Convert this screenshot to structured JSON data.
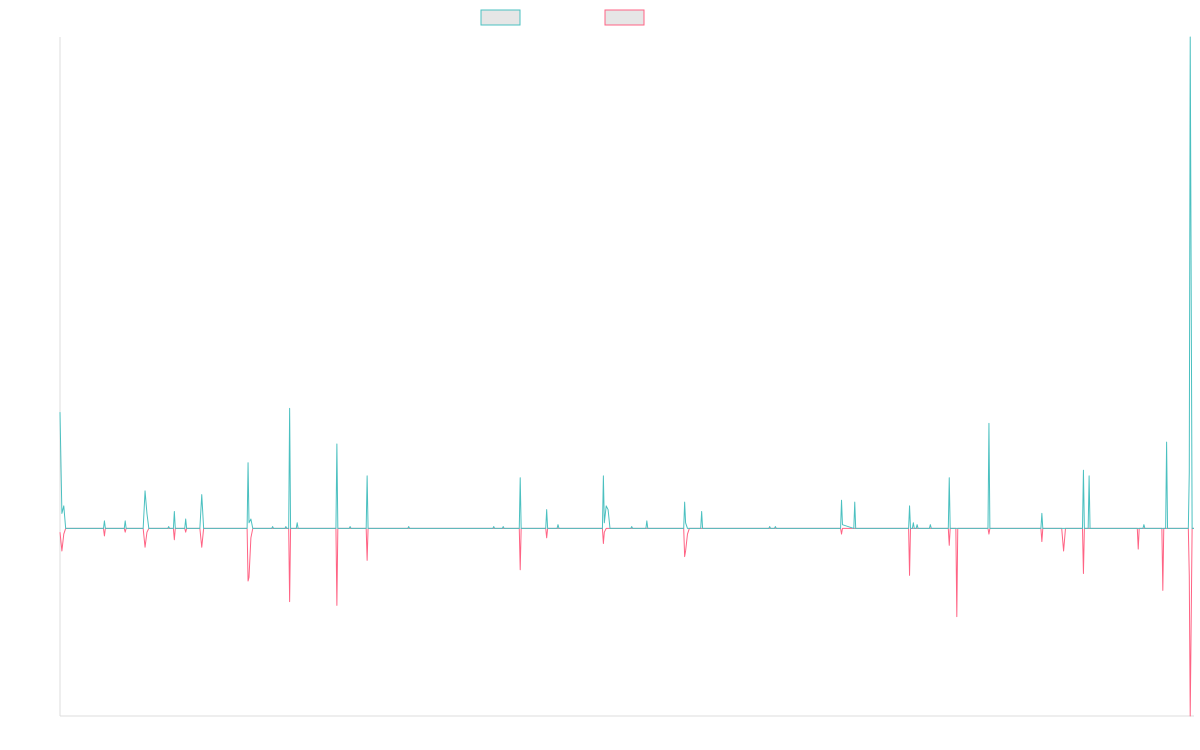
{
  "chart_data": {
    "type": "line",
    "title": "",
    "xlabel": "",
    "ylabel": "",
    "legend_position": "top-center",
    "grid": false,
    "x_range": [
      0,
      600
    ],
    "ylim": [
      -100,
      262
    ],
    "series": [
      {
        "color": "#4bc0c0",
        "legend_fill": "#e6e6e6",
        "points": [
          [
            0,
            62
          ],
          [
            1,
            8
          ],
          [
            2,
            12
          ],
          [
            3,
            0
          ],
          [
            23,
            0
          ],
          [
            23.5,
            4
          ],
          [
            24,
            0
          ],
          [
            34,
            0
          ],
          [
            34.5,
            4
          ],
          [
            35,
            0
          ],
          [
            44,
            0
          ],
          [
            45,
            20
          ],
          [
            46,
            8
          ],
          [
            47,
            0
          ],
          [
            57,
            0
          ],
          [
            57.5,
            1
          ],
          [
            58,
            0
          ],
          [
            60,
            0
          ],
          [
            60.5,
            9
          ],
          [
            61,
            0
          ],
          [
            66,
            0
          ],
          [
            66.5,
            5
          ],
          [
            67,
            0
          ],
          [
            74,
            0
          ],
          [
            75,
            18
          ],
          [
            76,
            0
          ],
          [
            99,
            0
          ],
          [
            99.5,
            35
          ],
          [
            100,
            3
          ],
          [
            101,
            5
          ],
          [
            102,
            0
          ],
          [
            112,
            0
          ],
          [
            112.5,
            1
          ],
          [
            113,
            0
          ],
          [
            119,
            0
          ],
          [
            119.5,
            1
          ],
          [
            120,
            0
          ],
          [
            121,
            0
          ],
          [
            121.5,
            64
          ],
          [
            122,
            0
          ],
          [
            125,
            0
          ],
          [
            125.5,
            3
          ],
          [
            126,
            0
          ],
          [
            146,
            0
          ],
          [
            146.5,
            45
          ],
          [
            147,
            0
          ],
          [
            153,
            0
          ],
          [
            153.5,
            1
          ],
          [
            154,
            0
          ],
          [
            162,
            0
          ],
          [
            162.5,
            28
          ],
          [
            163,
            0
          ],
          [
            184,
            0
          ],
          [
            184.5,
            1
          ],
          [
            185,
            0
          ],
          [
            229,
            0
          ],
          [
            229.5,
            1
          ],
          [
            230,
            0
          ],
          [
            234,
            0
          ],
          [
            234.5,
            1
          ],
          [
            235,
            0
          ],
          [
            243,
            0
          ],
          [
            243.5,
            27
          ],
          [
            244,
            0
          ],
          [
            257,
            0
          ],
          [
            257.5,
            10
          ],
          [
            258,
            0
          ],
          [
            263,
            0
          ],
          [
            263.5,
            2
          ],
          [
            264,
            0
          ],
          [
            287,
            0
          ],
          [
            287.5,
            28
          ],
          [
            288,
            3
          ],
          [
            289,
            12
          ],
          [
            290,
            10
          ],
          [
            291,
            0
          ],
          [
            302,
            0
          ],
          [
            302.5,
            1
          ],
          [
            303,
            0
          ],
          [
            310,
            0
          ],
          [
            310.5,
            4
          ],
          [
            311,
            0
          ],
          [
            330,
            0
          ],
          [
            330.5,
            14
          ],
          [
            331,
            3
          ],
          [
            332,
            0
          ],
          [
            339,
            0
          ],
          [
            339.5,
            9
          ],
          [
            340,
            0
          ],
          [
            375,
            0
          ],
          [
            375.5,
            1
          ],
          [
            376,
            0
          ],
          [
            378,
            0
          ],
          [
            378.5,
            1
          ],
          [
            379,
            0
          ],
          [
            413,
            0
          ],
          [
            413.5,
            15
          ],
          [
            414,
            2
          ],
          [
            420,
            0
          ],
          [
            420.5,
            14
          ],
          [
            421,
            0
          ],
          [
            449,
            0
          ],
          [
            449.5,
            12
          ],
          [
            450,
            0
          ],
          [
            451,
            0
          ],
          [
            451.5,
            3
          ],
          [
            452,
            0
          ],
          [
            453,
            0
          ],
          [
            453.5,
            2
          ],
          [
            454,
            0
          ],
          [
            460,
            0
          ],
          [
            460.5,
            2
          ],
          [
            461,
            0
          ],
          [
            470,
            0
          ],
          [
            470.5,
            27
          ],
          [
            471,
            0
          ],
          [
            491,
            0
          ],
          [
            491.5,
            56
          ],
          [
            492,
            0
          ],
          [
            519,
            0
          ],
          [
            519.5,
            8
          ],
          [
            520,
            0
          ],
          [
            541,
            0
          ],
          [
            541.5,
            31
          ],
          [
            542,
            0
          ],
          [
            544,
            0
          ],
          [
            544.5,
            28
          ],
          [
            545,
            0
          ],
          [
            573,
            0
          ],
          [
            573.5,
            2
          ],
          [
            574,
            0
          ],
          [
            585,
            0
          ],
          [
            585.5,
            46
          ],
          [
            586,
            0
          ],
          [
            597,
            0
          ],
          [
            597.5,
            30
          ],
          [
            598,
            262
          ],
          [
            599,
            0
          ],
          [
            600,
            0
          ]
        ]
      },
      {
        "color": "#ff6384",
        "legend_fill": "#e6e6e6",
        "points": [
          [
            0,
            -2
          ],
          [
            1,
            -12
          ],
          [
            2,
            -3
          ],
          [
            3,
            0
          ],
          [
            23,
            0
          ],
          [
            23.5,
            -4
          ],
          [
            24,
            0
          ],
          [
            34,
            0
          ],
          [
            34.5,
            -2
          ],
          [
            35,
            0
          ],
          [
            44,
            0
          ],
          [
            45,
            -10
          ],
          [
            46,
            -2
          ],
          [
            47,
            0
          ],
          [
            60,
            0
          ],
          [
            60.5,
            -6
          ],
          [
            61,
            0
          ],
          [
            66,
            0
          ],
          [
            66.5,
            -2
          ],
          [
            67,
            0
          ],
          [
            74,
            0
          ],
          [
            75,
            -10
          ],
          [
            76,
            0
          ],
          [
            99,
            0
          ],
          [
            99.5,
            -28
          ],
          [
            100,
            -26
          ],
          [
            101,
            -5
          ],
          [
            102,
            0
          ],
          [
            121,
            0
          ],
          [
            121.5,
            -39
          ],
          [
            122,
            0
          ],
          [
            146,
            0
          ],
          [
            146.5,
            -41
          ],
          [
            147,
            0
          ],
          [
            162,
            0
          ],
          [
            162.5,
            -17
          ],
          [
            163,
            0
          ],
          [
            243,
            0
          ],
          [
            243.5,
            -22
          ],
          [
            244,
            0
          ],
          [
            257,
            0
          ],
          [
            257.5,
            -5
          ],
          [
            258,
            0
          ],
          [
            287,
            0
          ],
          [
            287.5,
            -8
          ],
          [
            288,
            -2
          ],
          [
            289,
            0
          ],
          [
            330,
            0
          ],
          [
            330.5,
            -15
          ],
          [
            331,
            -12
          ],
          [
            332,
            -3
          ],
          [
            333,
            0
          ],
          [
            413,
            0
          ],
          [
            413.5,
            -3
          ],
          [
            414,
            0
          ],
          [
            449,
            0
          ],
          [
            449.5,
            -25
          ],
          [
            450,
            0
          ],
          [
            470,
            0
          ],
          [
            470.5,
            -9
          ],
          [
            471,
            0
          ],
          [
            474,
            0
          ],
          [
            474.5,
            -47
          ],
          [
            475,
            0
          ],
          [
            491,
            0
          ],
          [
            491.5,
            -3
          ],
          [
            492,
            0
          ],
          [
            519,
            0
          ],
          [
            519.5,
            -7
          ],
          [
            520,
            0
          ],
          [
            530,
            0
          ],
          [
            531,
            -12
          ],
          [
            532,
            0
          ],
          [
            541,
            0
          ],
          [
            541.5,
            -24
          ],
          [
            542,
            0
          ],
          [
            570,
            0
          ],
          [
            570.5,
            -11
          ],
          [
            571,
            0
          ],
          [
            583,
            0
          ],
          [
            583.5,
            -33
          ],
          [
            584,
            0
          ],
          [
            597,
            0
          ],
          [
            597.5,
            -25
          ],
          [
            598,
            -100
          ],
          [
            599,
            0
          ],
          [
            600,
            0
          ]
        ]
      }
    ]
  }
}
